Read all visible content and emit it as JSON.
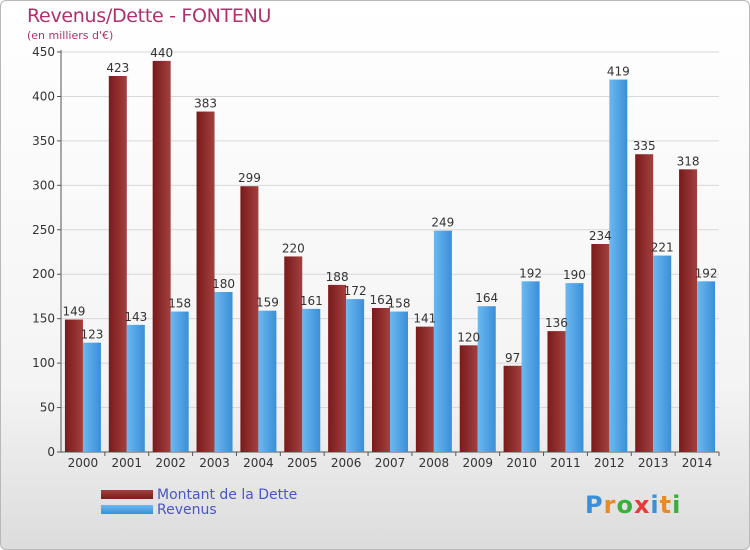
{
  "header": {
    "title": "Revenus/Dette - FONTENU",
    "subtitle": "(en milliers d'€)"
  },
  "legend": {
    "debt_label": "Montant de la Dette",
    "revenue_label": "Revenus"
  },
  "logo": {
    "letters": [
      "P",
      "r",
      "o",
      "x",
      "i",
      "t",
      "i"
    ],
    "colors": [
      "#3b8fd8",
      "#e88a2a",
      "#3cae3c",
      "#e83a3a",
      "#3b8fd8",
      "#e88a2a",
      "#3cae3c"
    ]
  },
  "colors": {
    "debt": "#7a1a1a",
    "debt_light": "#a34040",
    "revenue": "#3a8fd8",
    "revenue_light": "#6cb8f0",
    "axis_text": "#333333",
    "grid": "#d8d8d8"
  },
  "chart_data": {
    "type": "bar",
    "title": "Revenus/Dette - FONTENU",
    "subtitle": "(en milliers d'€)",
    "categories": [
      "2000",
      "2001",
      "2002",
      "2003",
      "2004",
      "2005",
      "2006",
      "2007",
      "2008",
      "2009",
      "2010",
      "2011",
      "2012",
      "2013",
      "2014"
    ],
    "series": [
      {
        "name": "Montant de la Dette",
        "values": [
          149,
          423,
          440,
          383,
          299,
          220,
          188,
          162,
          141,
          120,
          97,
          136,
          234,
          335,
          318
        ]
      },
      {
        "name": "Revenus",
        "values": [
          123,
          143,
          158,
          180,
          159,
          161,
          172,
          158,
          249,
          164,
          192,
          190,
          419,
          221,
          192
        ]
      }
    ],
    "value_labels": [
      [
        "149",
        "423",
        "440",
        "383",
        "299",
        "220",
        "188",
        "162",
        "141",
        "120",
        "97",
        "136",
        "234",
        "335",
        "318"
      ],
      [
        "123",
        "143",
        "158",
        "180",
        "159",
        "161",
        "172",
        "158",
        "249",
        "164",
        "192",
        "190",
        "419",
        "221",
        "192"
      ]
    ],
    "ylim": [
      0,
      450
    ],
    "yticks": [
      0,
      50,
      100,
      150,
      200,
      250,
      300,
      350,
      400,
      450
    ],
    "grid": true,
    "legend_position": "bottom-left"
  }
}
